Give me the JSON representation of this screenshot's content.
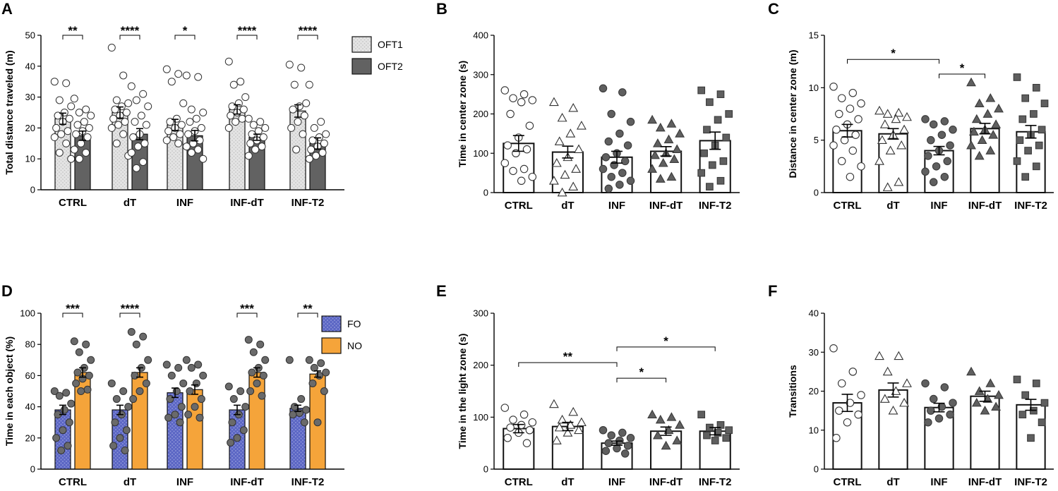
{
  "chart_data": [
    {
      "panel": "A",
      "type": "bar",
      "ylabel": "Total distance traveled (m)",
      "ylim": [
        0,
        50
      ],
      "yticks": [
        0,
        10,
        20,
        30,
        40,
        50
      ],
      "categories": [
        "CTRL",
        "dT",
        "INF",
        "INF-dT",
        "INF-T2"
      ],
      "series": [
        {
          "name": "OFT1",
          "values": [
            23,
            25,
            21,
            26,
            25.5
          ],
          "errors": [
            1.8,
            1.8,
            1.8,
            1.5,
            2
          ]
        },
        {
          "name": "OFT2",
          "values": [
            17.5,
            18,
            17.5,
            17,
            15
          ],
          "errors": [
            1.5,
            1.8,
            1.7,
            1.0,
            1.8
          ]
        }
      ],
      "points": [
        [
          [
            35,
            34.5,
            29,
            27,
            25,
            24,
            23,
            22,
            20,
            19,
            18,
            17,
            15,
            12,
            10
          ],
          [
            29.5,
            26,
            25,
            24,
            22,
            21,
            20,
            19,
            18,
            17,
            15,
            13,
            12,
            10
          ]
        ],
        [
          [
            46,
            37,
            29,
            28,
            27,
            26,
            25,
            24,
            23,
            22,
            21,
            20,
            18,
            15,
            11
          ],
          [
            33.5,
            31,
            29,
            27,
            24,
            22,
            21,
            18,
            17,
            15,
            14,
            12,
            9,
            7
          ]
        ],
        [
          [
            39,
            37.5,
            35,
            28,
            23,
            22,
            21,
            20,
            19,
            18,
            17,
            16,
            15
          ],
          [
            37,
            36.5,
            26,
            25,
            23,
            22,
            20,
            19,
            18,
            16,
            15,
            14,
            13,
            12,
            10
          ]
        ],
        [
          [
            41.5,
            35,
            34,
            30,
            28,
            27,
            26,
            25,
            24,
            23,
            22,
            20
          ],
          [
            23,
            22,
            21,
            20,
            19,
            18,
            17,
            16,
            15,
            14,
            13,
            11
          ]
        ],
        [
          [
            40.5,
            39.5,
            34,
            28,
            27,
            26,
            24,
            22,
            20,
            18,
            13
          ],
          [
            34,
            22,
            20,
            18,
            17,
            16,
            15,
            14,
            13,
            12,
            11,
            10
          ]
        ]
      ],
      "significance": [
        "**",
        "****",
        "*",
        "****",
        "****"
      ],
      "legend": [
        "OFT1",
        "OFT2"
      ]
    },
    {
      "panel": "B",
      "type": "bar",
      "ylabel": "Time in center zone (s)",
      "ylim": [
        0,
        400
      ],
      "yticks": [
        0,
        100,
        200,
        300,
        400
      ],
      "categories": [
        "CTRL",
        "dT",
        "INF",
        "INF-dT",
        "INF-T2"
      ],
      "values": [
        125,
        103,
        90,
        105,
        132
      ],
      "errors": [
        20,
        15,
        15,
        12,
        22
      ],
      "markers": [
        "open-circle",
        "open-triangle",
        "filled-circle",
        "filled-triangle",
        "filled-square"
      ],
      "points": [
        [
          260,
          250,
          240,
          235,
          230,
          200,
          170,
          140,
          120,
          110,
          100,
          75,
          60,
          55,
          40,
          30
        ],
        [
          230,
          215,
          190,
          170,
          150,
          130,
          110,
          90,
          75,
          60,
          45,
          30,
          15,
          0
        ],
        [
          265,
          255,
          200,
          180,
          150,
          130,
          120,
          100,
          90,
          80,
          70,
          60,
          50,
          40,
          30,
          20,
          10
        ],
        [
          185,
          175,
          165,
          150,
          135,
          125,
          110,
          100,
          95,
          85,
          75,
          60,
          40,
          35
        ],
        [
          260,
          250,
          230,
          200,
          185,
          160,
          140,
          120,
          100,
          80,
          70,
          50,
          30,
          15
        ]
      ]
    },
    {
      "panel": "C",
      "type": "bar",
      "ylabel": "Distance in center zone (m)",
      "ylim": [
        0,
        15
      ],
      "yticks": [
        0,
        5,
        10,
        15
      ],
      "categories": [
        "CTRL",
        "dT",
        "INF",
        "INF-dT",
        "INF-T2"
      ],
      "values": [
        5.9,
        5.6,
        4.0,
        6.1,
        5.8
      ],
      "errors": [
        0.6,
        0.5,
        0.4,
        0.5,
        0.6
      ],
      "markers": [
        "open-circle",
        "open-triangle",
        "filled-circle",
        "filled-triangle",
        "filled-square"
      ],
      "points": [
        [
          10.1,
          9.5,
          9.0,
          8.5,
          8.0,
          7.5,
          7.0,
          6.5,
          6.0,
          5.5,
          5.0,
          4.5,
          4.0,
          3.0,
          2.5,
          1.5
        ],
        [
          7.8,
          7.6,
          7.5,
          7.2,
          7.0,
          6.5,
          6.0,
          5.5,
          5.0,
          4.5,
          4.0,
          3.0,
          1.0,
          0.5
        ],
        [
          7.0,
          6.8,
          6.5,
          6.0,
          5.5,
          5.0,
          4.5,
          4.0,
          3.5,
          3.0,
          2.5,
          2.0,
          1.5,
          1.0
        ],
        [
          10.5,
          9.0,
          8.5,
          8.0,
          7.5,
          7.0,
          6.5,
          6.0,
          5.8,
          5.5,
          5.0,
          4.5,
          4.0,
          3.5
        ],
        [
          11.0,
          10.0,
          9.0,
          8.5,
          7.5,
          7.0,
          6.0,
          5.5,
          5.0,
          4.5,
          4.0,
          3.0,
          2.5,
          1.5
        ]
      ],
      "brackets": [
        {
          "from": 0,
          "to": 2,
          "label": "*"
        },
        {
          "from": 2,
          "to": 3,
          "label": "*"
        }
      ]
    },
    {
      "panel": "D",
      "type": "bar",
      "ylabel": "Time in each object (%)",
      "ylim": [
        0,
        100
      ],
      "yticks": [
        0,
        20,
        40,
        60,
        80,
        100
      ],
      "categories": [
        "CTRL",
        "dT",
        "INF",
        "INF-dT",
        "INF-T2"
      ],
      "series": [
        {
          "name": "FO",
          "values": [
            38,
            38,
            49,
            38,
            39
          ],
          "errors": [
            3,
            3,
            3,
            3,
            2
          ]
        },
        {
          "name": "NO",
          "values": [
            62,
            62,
            51,
            62,
            61
          ],
          "errors": [
            3,
            3,
            3,
            3,
            2
          ]
        }
      ],
      "points": [
        [
          [
            50,
            49,
            47,
            42,
            38,
            35,
            30,
            25,
            20,
            15,
            12
          ],
          [
            82,
            80,
            75,
            70,
            65,
            62,
            60,
            58,
            55,
            51,
            50
          ]
        ],
        [
          [
            55,
            50,
            45,
            40,
            35,
            30,
            25,
            20,
            15,
            12
          ],
          [
            88,
            85,
            80,
            70,
            65,
            60,
            55,
            50,
            45
          ]
        ],
        [
          [
            67,
            65,
            60,
            55,
            50,
            45,
            40,
            35,
            33,
            30
          ],
          [
            70,
            67,
            65,
            60,
            55,
            50,
            45,
            40,
            35,
            33
          ]
        ],
        [
          [
            53,
            50,
            45,
            40,
            35,
            30,
            25,
            20,
            17
          ],
          [
            83,
            80,
            75,
            70,
            65,
            62,
            60,
            55,
            50,
            47
          ]
        ],
        [
          [
            70,
            45,
            40,
            38,
            36,
            35,
            30
          ],
          [
            70,
            68,
            65,
            62,
            60,
            55,
            50,
            30
          ]
        ]
      ],
      "significance": [
        "***",
        "****",
        "",
        "***",
        "**"
      ],
      "legend": [
        "FO",
        "NO"
      ]
    },
    {
      "panel": "E",
      "type": "bar",
      "ylabel": "Time in the light zone (s)",
      "ylim": [
        0,
        300
      ],
      "yticks": [
        0,
        100,
        200,
        300
      ],
      "categories": [
        "CTRL",
        "dT",
        "INF",
        "INF-dT",
        "INF-T2"
      ],
      "values": [
        78,
        82,
        50,
        73,
        73
      ],
      "errors": [
        8,
        8,
        4,
        8,
        7
      ],
      "markers": [
        "open-circle",
        "open-triangle",
        "filled-circle",
        "filled-triangle",
        "filled-square"
      ],
      "points": [
        [
          118,
          105,
          95,
          90,
          85,
          80,
          75,
          70,
          60,
          50
        ],
        [
          125,
          110,
          95,
          90,
          85,
          80,
          75,
          70,
          55
        ],
        [
          75,
          70,
          65,
          60,
          55,
          50,
          45,
          40,
          35,
          30
        ],
        [
          105,
          100,
          95,
          85,
          75,
          65,
          55,
          45
        ],
        [
          105,
          85,
          80,
          75,
          70,
          65,
          60,
          55
        ]
      ],
      "brackets": [
        {
          "from": 0,
          "to": 2,
          "label": "**"
        },
        {
          "from": 2,
          "to": 4,
          "label": "*"
        },
        {
          "from": 2,
          "to": 3,
          "label": "*"
        }
      ]
    },
    {
      "panel": "F",
      "type": "bar",
      "ylabel": "Transitions",
      "ylim": [
        0,
        40
      ],
      "yticks": [
        0,
        10,
        20,
        30,
        40
      ],
      "categories": [
        "CTRL",
        "dT",
        "INF",
        "INF-dT",
        "INF-T2"
      ],
      "values": [
        17,
        20.3,
        15.8,
        18.7,
        16.5
      ],
      "errors": [
        2.2,
        1.8,
        1.1,
        1.3,
        1.4
      ],
      "markers": [
        "open-circle",
        "open-triangle",
        "filled-circle",
        "filled-triangle",
        "filled-square"
      ],
      "points": [
        [
          31,
          25,
          22,
          19,
          17,
          15,
          14,
          12,
          8
        ],
        [
          29,
          29,
          25,
          22,
          20,
          18,
          17,
          15
        ],
        [
          22,
          21,
          18,
          17,
          16,
          15,
          14,
          13,
          12
        ],
        [
          25,
          22,
          20,
          19,
          18,
          17,
          16,
          15
        ],
        [
          23,
          22,
          19,
          17,
          15,
          14,
          12,
          8
        ]
      ]
    }
  ]
}
